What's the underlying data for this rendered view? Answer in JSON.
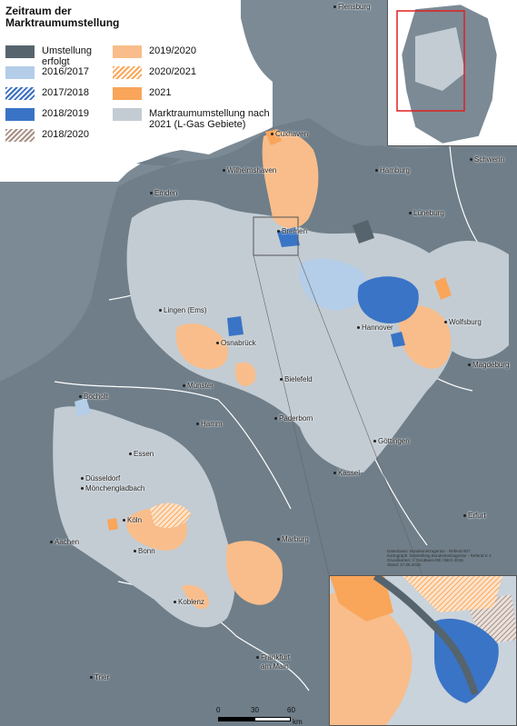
{
  "legend": {
    "title_line1": "Zeitraum der",
    "title_line2": "Marktraumumstellung",
    "items_left": [
      {
        "label_line1": "Umstellung",
        "label_line2": "erfolgt",
        "color": "#56646e",
        "pattern": "solid"
      },
      {
        "label_line1": "2016/2017",
        "label_line2": "",
        "color": "#b4cde8",
        "pattern": "solid"
      },
      {
        "label_line1": "2017/2018",
        "label_line2": "",
        "color": "#3a6fc0",
        "pattern": "hatch"
      },
      {
        "label_line1": "2018/2019",
        "label_line2": "",
        "color": "#3a74c6",
        "pattern": "solid"
      },
      {
        "label_line1": "2018/2020",
        "label_line2": "",
        "color": "#a88f85",
        "pattern": "hatch"
      }
    ],
    "items_right": [
      {
        "label_line1": "2019/2020",
        "label_line2": "",
        "color": "#f8bd8a",
        "pattern": "solid"
      },
      {
        "label_line1": "2020/2021",
        "label_line2": "",
        "color": "#f8a85a",
        "pattern": "hatch"
      },
      {
        "label_line1": "2021",
        "label_line2": "",
        "color": "#f9a55a",
        "pattern": "solid"
      },
      {
        "label_line1": "Marktraumumstellung nach",
        "label_line2": "2021 (L-Gas Gebiete)",
        "color": "#c3ccd3",
        "pattern": "solid"
      }
    ]
  },
  "cities": [
    {
      "name": "Flensburg"
    },
    {
      "name": "Cuxhaven"
    },
    {
      "name": "Wilhelmshaven"
    },
    {
      "name": "Hamburg"
    },
    {
      "name": "Schwerin"
    },
    {
      "name": "Emden"
    },
    {
      "name": "Lüneburg"
    },
    {
      "name": "Bremen"
    },
    {
      "name": "Lingen (Ems)"
    },
    {
      "name": "Hannover"
    },
    {
      "name": "Wolfsburg"
    },
    {
      "name": "Osnabrück"
    },
    {
      "name": "Bielefeld"
    },
    {
      "name": "Magdeburg"
    },
    {
      "name": "Münster"
    },
    {
      "name": "Bocholt"
    },
    {
      "name": "Paderborn"
    },
    {
      "name": "Hamm"
    },
    {
      "name": "Göttingen"
    },
    {
      "name": "Essen"
    },
    {
      "name": "Kassel"
    },
    {
      "name": "Düsseldorf"
    },
    {
      "name": "Mönchengladbach"
    },
    {
      "name": "Erfurt"
    },
    {
      "name": "Köln"
    },
    {
      "name": "Aachen"
    },
    {
      "name": "Bonn"
    },
    {
      "name": "Marburg"
    },
    {
      "name": "Koblenz"
    },
    {
      "name": "Frankfurt"
    },
    {
      "name": "am Main"
    },
    {
      "name": "Trier"
    }
  ],
  "metadata_lines": [
    "Datenbasis: Bundesnetzagentur - Referat 807",
    "Kartograph. Darstellung Bundesnetzagentur - Referat K 4",
    "Grundkarten: © GeoBasis-DE / BKG 2015",
    "Stand: 27.08.2018"
  ],
  "scale": {
    "labels": [
      "0",
      "30",
      "60"
    ],
    "unit": "km"
  },
  "colors": {
    "sea": "#7b8a95",
    "land": "#6f7e89",
    "lgas": "#c3ccd3",
    "orange_light": "#f8bd8a",
    "orange": "#f9a55a",
    "blue": "#3a74c6",
    "blue_light": "#b4cde8",
    "dark": "#56646e",
    "inset_frame": "#e02020"
  }
}
